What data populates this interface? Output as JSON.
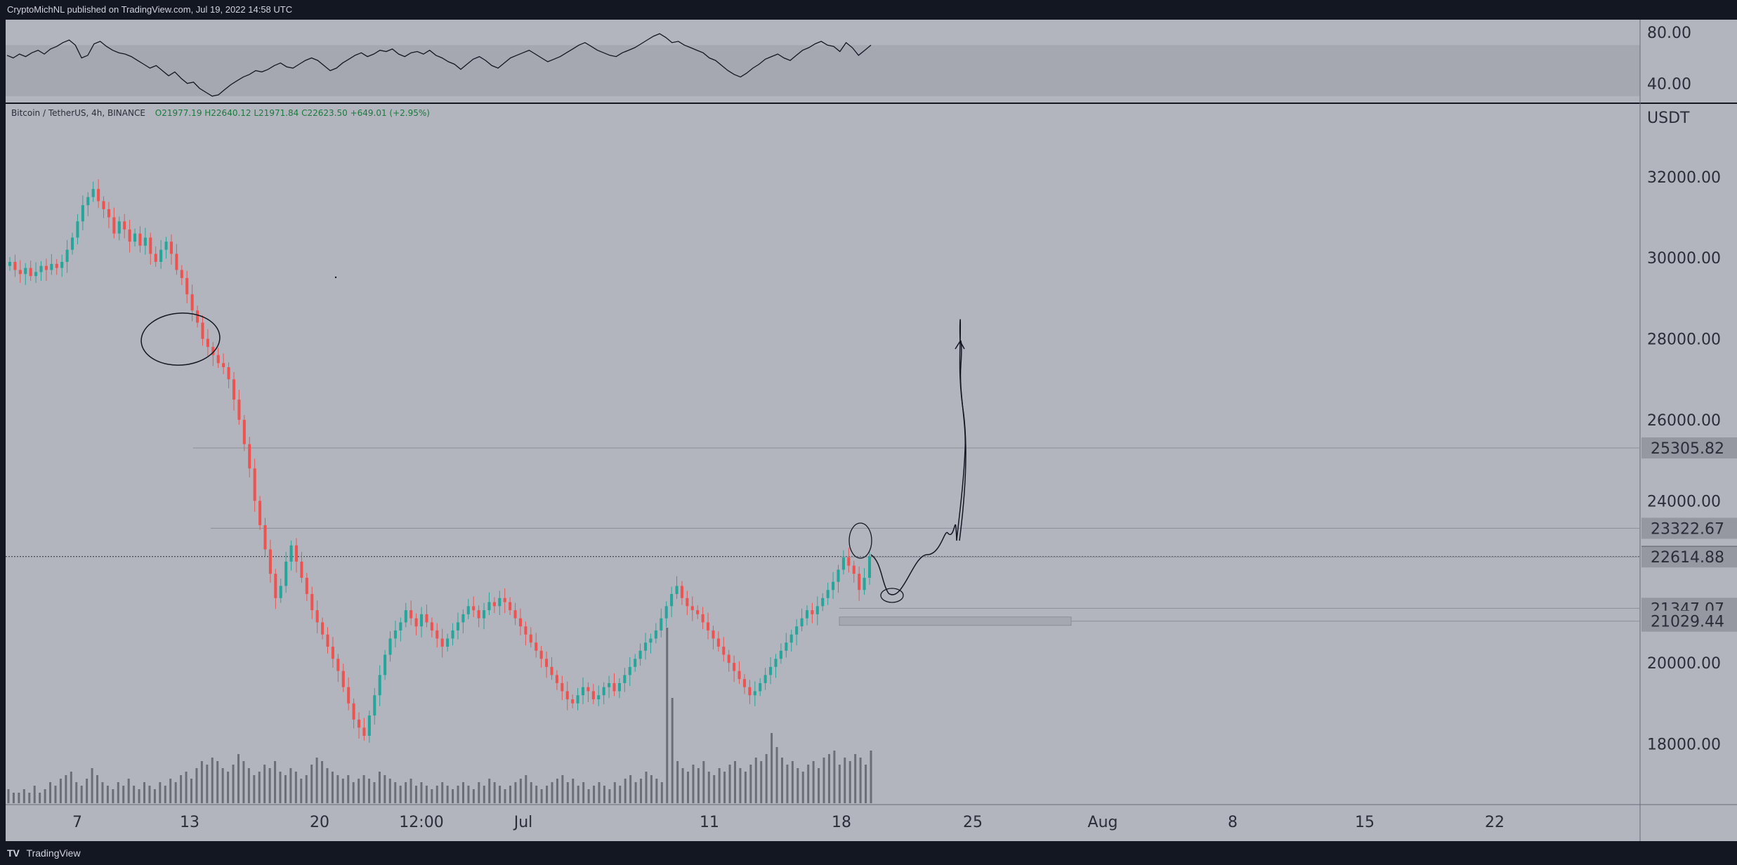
{
  "header": {
    "published": "CryptoMichNL published on TradingView.com, Jul 19, 2022 14:58 UTC"
  },
  "footer": {
    "brand": "TradingView"
  },
  "legend": {
    "symbol": "Bitcoin / TetherUS, 4h, BINANCE",
    "ohlc": "O21977.19  H22640.12  L21971.84  C22623.50  +649.01 (+2.95%)"
  },
  "chart_data": [
    {
      "type": "line",
      "name": "oscillator",
      "ylim": [
        25,
        90
      ],
      "yticks": [
        "80.00",
        "40.00"
      ],
      "band": [
        30,
        70
      ],
      "values": [
        62,
        60,
        63,
        61,
        64,
        66,
        63,
        67,
        69,
        72,
        74,
        70,
        60,
        62,
        71,
        73,
        69,
        66,
        64,
        63,
        61,
        58,
        55,
        52,
        54,
        50,
        46,
        49,
        44,
        40,
        41,
        36,
        33,
        30,
        31,
        35,
        39,
        42,
        45,
        47,
        50,
        49,
        51,
        54,
        56,
        53,
        52,
        55,
        58,
        60,
        58,
        54,
        50,
        52,
        56,
        59,
        62,
        64,
        61,
        63,
        66,
        65,
        67,
        63,
        61,
        64,
        65,
        63,
        66,
        62,
        60,
        57,
        55,
        51,
        55,
        59,
        61,
        58,
        54,
        52,
        56,
        60,
        62,
        64,
        66,
        63,
        60,
        57,
        59,
        61,
        64,
        67,
        70,
        72,
        69,
        66,
        64,
        62,
        61,
        64,
        66,
        68,
        71,
        74,
        77,
        79,
        76,
        72,
        73,
        70,
        68,
        66,
        64,
        60,
        58,
        54,
        50,
        47,
        45,
        48,
        52,
        55,
        59,
        61,
        63,
        60,
        58,
        62,
        66,
        68,
        71,
        73,
        70,
        69,
        65,
        72,
        68,
        62,
        66,
        70
      ],
      "line_color": "#131722"
    },
    {
      "type": "candlestick",
      "name": "Bitcoin / TetherUS",
      "y_unit": "USDT",
      "ylim": [
        16500,
        33800
      ],
      "yticks": [
        "32000.00",
        "30000.00",
        "28000.00",
        "26000.00",
        "24000.00",
        "20000.00",
        "18000.00"
      ],
      "xticks": [
        "7",
        "13",
        "20",
        "12:00",
        "Jul",
        "11",
        "18",
        "25",
        "Aug",
        "8",
        "15",
        "22"
      ],
      "up_color": "#26a69a",
      "down_color": "#ef5350",
      "closes": [
        29900,
        29700,
        29600,
        29750,
        29550,
        29650,
        29800,
        29700,
        29850,
        29750,
        29900,
        30200,
        30500,
        30900,
        31300,
        31500,
        31700,
        31400,
        31200,
        31000,
        30600,
        30900,
        30700,
        30400,
        30600,
        30300,
        30500,
        30100,
        29900,
        30200,
        30400,
        30100,
        29700,
        29500,
        29100,
        28700,
        28400,
        28000,
        27800,
        27600,
        27400,
        27300,
        27000,
        26500,
        26000,
        25400,
        24800,
        24000,
        23400,
        22800,
        22200,
        21600,
        21900,
        22500,
        22900,
        22500,
        22100,
        21700,
        21300,
        21000,
        20700,
        20400,
        20100,
        19800,
        19400,
        19000,
        18600,
        18400,
        18200,
        18700,
        19200,
        19700,
        20200,
        20600,
        20800,
        21000,
        21300,
        21100,
        20900,
        21200,
        21000,
        20800,
        20600,
        20400,
        20600,
        20800,
        21000,
        21200,
        21400,
        21300,
        21100,
        21300,
        21500,
        21400,
        21600,
        21500,
        21300,
        21100,
        20900,
        20700,
        20500,
        20300,
        20100,
        19900,
        19700,
        19500,
        19300,
        19100,
        19000,
        19200,
        19400,
        19300,
        19100,
        19200,
        19400,
        19500,
        19300,
        19500,
        19700,
        19900,
        20100,
        20300,
        20500,
        20600,
        20800,
        21100,
        21400,
        21700,
        21900,
        21600,
        21400,
        21300,
        21200,
        21000,
        20800,
        20600,
        20400,
        20200,
        20000,
        19800,
        19600,
        19400,
        19200,
        19300,
        19500,
        19700,
        19900,
        20100,
        20300,
        20500,
        20700,
        20900,
        21100,
        21300,
        21200,
        21400,
        21600,
        21800,
        22000,
        22300,
        22600,
        22400,
        22200,
        21800,
        22100,
        22623.5
      ],
      "horizontal_levels": [
        "25305.82",
        "23322.67",
        "22623.50",
        "22614.88",
        "21347.07",
        "21029.44"
      ],
      "volume": [
        4,
        3,
        3,
        4,
        3,
        5,
        3,
        4,
        6,
        5,
        7,
        8,
        9,
        6,
        5,
        7,
        10,
        8,
        6,
        5,
        4,
        6,
        5,
        7,
        5,
        4,
        6,
        5,
        4,
        6,
        5,
        7,
        6,
        8,
        9,
        7,
        10,
        12,
        11,
        13,
        12,
        10,
        9,
        11,
        14,
        12,
        10,
        8,
        9,
        11,
        10,
        12,
        9,
        8,
        10,
        9,
        7,
        8,
        11,
        13,
        12,
        10,
        9,
        8,
        7,
        8,
        6,
        7,
        8,
        7,
        6,
        9,
        8,
        7,
        6,
        5,
        6,
        7,
        5,
        6,
        5,
        4,
        5,
        6,
        5,
        4,
        5,
        6,
        5,
        4,
        6,
        5,
        7,
        6,
        5,
        4,
        5,
        6,
        7,
        8,
        6,
        5,
        4,
        5,
        6,
        7,
        8,
        6,
        7,
        5,
        6,
        4,
        5,
        6,
        5,
        4,
        6,
        5,
        7,
        8,
        6,
        7,
        9,
        8,
        7,
        6,
        50,
        30,
        12,
        10,
        9,
        11,
        10,
        12,
        9,
        8,
        10,
        9,
        11,
        12,
        10,
        9,
        11,
        13,
        12,
        14,
        20,
        16,
        13,
        11,
        12,
        10,
        9,
        11,
        12,
        10,
        13,
        14,
        15,
        11,
        13,
        12,
        14,
        13,
        11,
        15
      ],
      "volume_color": "#131722"
    }
  ]
}
